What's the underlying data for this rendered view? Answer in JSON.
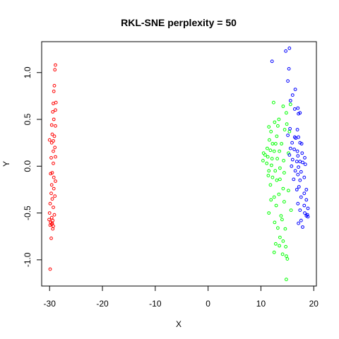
{
  "chart_data": {
    "type": "scatter",
    "title": "RKL-SNE perplexity = 50",
    "xlabel": "X",
    "ylabel": "Y",
    "xlim": [
      -31.5,
      20.5
    ],
    "ylim": [
      -1.28,
      1.33
    ],
    "xticks": [
      -30,
      -20,
      -10,
      0,
      10,
      20
    ],
    "yticks": [
      -1.0,
      -0.5,
      0.0,
      0.5,
      1.0
    ],
    "ytick_labels": [
      "-1.0",
      "-0.5",
      "0.0",
      "0.5",
      "1.0"
    ],
    "grid": false,
    "marker": "open-circle",
    "series": [
      {
        "color": "#ff0000",
        "points": [
          [
            -28.9,
            1.08
          ],
          [
            -29.0,
            1.03
          ],
          [
            -29.1,
            0.86
          ],
          [
            -29.2,
            0.8
          ],
          [
            -28.8,
            0.68
          ],
          [
            -29.3,
            0.67
          ],
          [
            -28.9,
            0.6
          ],
          [
            -29.4,
            0.58
          ],
          [
            -29.2,
            0.5
          ],
          [
            -29.6,
            0.44
          ],
          [
            -28.9,
            0.43
          ],
          [
            -29.5,
            0.34
          ],
          [
            -29.1,
            0.32
          ],
          [
            -30.0,
            0.28
          ],
          [
            -29.3,
            0.27
          ],
          [
            -29.6,
            0.25
          ],
          [
            -29.0,
            0.2
          ],
          [
            -29.3,
            0.16
          ],
          [
            -28.9,
            0.1
          ],
          [
            -29.7,
            0.09
          ],
          [
            -29.3,
            0.03
          ],
          [
            -29.5,
            -0.07
          ],
          [
            -29.8,
            -0.08
          ],
          [
            -29.2,
            -0.12
          ],
          [
            -28.9,
            -0.16
          ],
          [
            -29.6,
            -0.2
          ],
          [
            -29.2,
            -0.24
          ],
          [
            -29.7,
            -0.29
          ],
          [
            -29.0,
            -0.32
          ],
          [
            -29.5,
            -0.35
          ],
          [
            -29.9,
            -0.4
          ],
          [
            -29.3,
            -0.44
          ],
          [
            -30.0,
            -0.5
          ],
          [
            -29.1,
            -0.52
          ],
          [
            -29.6,
            -0.55
          ],
          [
            -30.1,
            -0.57
          ],
          [
            -29.4,
            -0.58
          ],
          [
            -29.8,
            -0.6
          ],
          [
            -29.5,
            -0.61
          ],
          [
            -29.6,
            -0.62
          ],
          [
            -29.9,
            -0.63
          ],
          [
            -29.3,
            -0.64
          ],
          [
            -29.4,
            -0.67
          ],
          [
            -29.7,
            -0.77
          ],
          [
            -29.9,
            -1.1
          ]
        ]
      },
      {
        "color": "#00ff00",
        "points": [
          [
            12.4,
            0.68
          ],
          [
            14.2,
            0.64
          ],
          [
            15.6,
            0.66
          ],
          [
            14.8,
            0.57
          ],
          [
            13.4,
            0.5
          ],
          [
            12.6,
            0.47
          ],
          [
            13.2,
            0.43
          ],
          [
            14.9,
            0.45
          ],
          [
            11.5,
            0.42
          ],
          [
            11.9,
            0.37
          ],
          [
            14.5,
            0.39
          ],
          [
            15.4,
            0.37
          ],
          [
            13.0,
            0.32
          ],
          [
            11.6,
            0.28
          ],
          [
            12.2,
            0.24
          ],
          [
            12.8,
            0.24
          ],
          [
            13.9,
            0.24
          ],
          [
            11.2,
            0.19
          ],
          [
            11.8,
            0.17
          ],
          [
            12.5,
            0.16
          ],
          [
            13.5,
            0.16
          ],
          [
            15.2,
            0.14
          ],
          [
            10.5,
            0.14
          ],
          [
            10.8,
            0.12
          ],
          [
            11.3,
            0.1
          ],
          [
            12.1,
            0.08
          ],
          [
            13.1,
            0.08
          ],
          [
            14.3,
            0.06
          ],
          [
            10.4,
            0.06
          ],
          [
            11.1,
            0.03
          ],
          [
            12.0,
            0.01
          ],
          [
            13.6,
            -0.02
          ],
          [
            11.5,
            -0.05
          ],
          [
            12.7,
            -0.05
          ],
          [
            14.4,
            -0.07
          ],
          [
            11.4,
            -0.1
          ],
          [
            12.2,
            -0.12
          ],
          [
            13.0,
            -0.15
          ],
          [
            13.6,
            -0.14
          ],
          [
            11.8,
            -0.2
          ],
          [
            14.2,
            -0.24
          ],
          [
            15.2,
            -0.26
          ],
          [
            13.4,
            -0.3
          ],
          [
            12.5,
            -0.33
          ],
          [
            11.9,
            -0.36
          ],
          [
            14.4,
            -0.38
          ],
          [
            12.9,
            -0.42
          ],
          [
            15.7,
            -0.47
          ],
          [
            11.5,
            -0.5
          ],
          [
            13.8,
            -0.53
          ],
          [
            14.0,
            -0.57
          ],
          [
            12.6,
            -0.6
          ],
          [
            13.2,
            -0.66
          ],
          [
            14.6,
            -0.67
          ],
          [
            13.6,
            -0.76
          ],
          [
            14.2,
            -0.8
          ],
          [
            12.8,
            -0.83
          ],
          [
            13.5,
            -0.85
          ],
          [
            14.7,
            -0.86
          ],
          [
            12.5,
            -0.92
          ],
          [
            14.1,
            -0.94
          ],
          [
            14.8,
            -0.96
          ],
          [
            15.0,
            -0.99
          ],
          [
            14.8,
            -1.21
          ]
        ]
      },
      {
        "color": "#0000ff",
        "points": [
          [
            14.7,
            1.23
          ],
          [
            15.4,
            1.26
          ],
          [
            12.1,
            1.12
          ],
          [
            15.3,
            1.04
          ],
          [
            15.1,
            0.91
          ],
          [
            16.5,
            0.82
          ],
          [
            16.0,
            0.76
          ],
          [
            15.6,
            0.7
          ],
          [
            17.0,
            0.62
          ],
          [
            16.4,
            0.61
          ],
          [
            17.4,
            0.57
          ],
          [
            17.1,
            0.56
          ],
          [
            15.5,
            0.4
          ],
          [
            16.9,
            0.39
          ],
          [
            15.1,
            0.33
          ],
          [
            16.4,
            0.31
          ],
          [
            16.6,
            0.3
          ],
          [
            17.1,
            0.31
          ],
          [
            15.9,
            0.25
          ],
          [
            17.4,
            0.25
          ],
          [
            17.7,
            0.24
          ],
          [
            15.6,
            0.19
          ],
          [
            16.3,
            0.18
          ],
          [
            16.9,
            0.16
          ],
          [
            17.8,
            0.14
          ],
          [
            15.4,
            0.12
          ],
          [
            17.0,
            0.11
          ],
          [
            18.3,
            0.09
          ],
          [
            16.0,
            0.07
          ],
          [
            16.8,
            0.05
          ],
          [
            17.4,
            0.05
          ],
          [
            17.9,
            0.04
          ],
          [
            18.4,
            0.02
          ],
          [
            15.8,
            0.0
          ],
          [
            17.1,
            -0.01
          ],
          [
            16.5,
            -0.05
          ],
          [
            17.6,
            -0.06
          ],
          [
            17.0,
            -0.09
          ],
          [
            18.2,
            -0.12
          ],
          [
            16.2,
            -0.14
          ],
          [
            17.4,
            -0.15
          ],
          [
            17.2,
            -0.22
          ],
          [
            16.8,
            -0.25
          ],
          [
            18.6,
            -0.25
          ],
          [
            18.2,
            -0.29
          ],
          [
            17.6,
            -0.33
          ],
          [
            18.6,
            -0.36
          ],
          [
            17.0,
            -0.4
          ],
          [
            18.2,
            -0.42
          ],
          [
            18.9,
            -0.45
          ],
          [
            17.4,
            -0.47
          ],
          [
            18.3,
            -0.5
          ],
          [
            18.8,
            -0.52
          ],
          [
            18.6,
            -0.53
          ],
          [
            18.9,
            -0.54
          ],
          [
            17.6,
            -0.58
          ],
          [
            17.1,
            -0.61
          ],
          [
            17.9,
            -0.65
          ]
        ]
      }
    ]
  }
}
